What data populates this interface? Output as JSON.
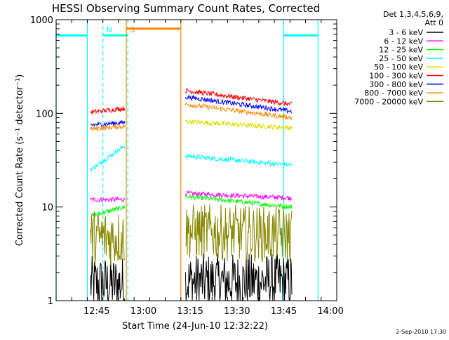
{
  "chart_data": {
    "type": "line",
    "title": "HESSI Observing Summary Count Rates, Corrected",
    "xlabel": "Start Time (24-Jun-10 12:32:22)",
    "ylabel": "Corrected Count Rate (s⁻¹ detector⁻¹)",
    "y_scale": "log",
    "ylim": [
      1,
      1000
    ],
    "y_ticks": [
      1,
      10,
      100,
      1000
    ],
    "y_tick_labels": [
      "1",
      "10",
      "100",
      "1000"
    ],
    "xlim_min_after_1232": [
      0,
      90
    ],
    "x_ticks_min_after_1232": [
      13,
      28,
      43,
      58,
      73,
      88
    ],
    "x_tick_labels": [
      "12:45",
      "13:00",
      "13:15",
      "13:30",
      "13:45",
      "14:00"
    ],
    "legend_header": [
      "Det 1,3,4,5,6,9,",
      "Att 0"
    ],
    "legend_placement": "right",
    "footer_date": "2-Sep-2010 17:30",
    "series": [
      {
        "name": "3 - 6 keV",
        "color": "#000000",
        "noisy": true,
        "segments": [
          {
            "x": [
              11,
              22
            ],
            "y": [
              1.5,
              1.5
            ]
          },
          {
            "x": [
              41.5,
              75.6
            ],
            "y": [
              1.6,
              1.6
            ]
          }
        ]
      },
      {
        "name": "6 - 12 keV",
        "color": "#ff00ff",
        "segments": [
          {
            "x": [
              11,
              22
            ],
            "y": [
              12,
              12
            ]
          },
          {
            "x": [
              41.5,
              75.6
            ],
            "y": [
              14,
              12.5
            ]
          }
        ]
      },
      {
        "name": "12 - 25 keV",
        "color": "#00ff00",
        "segments": [
          {
            "x": [
              11,
              22
            ],
            "y": [
              8,
              10
            ]
          },
          {
            "x": [
              41.5,
              75.6
            ],
            "y": [
              13,
              10
            ]
          }
        ]
      },
      {
        "name": "25 - 50 keV",
        "color": "#00ffff",
        "segments": [
          {
            "x": [
              11,
              22
            ],
            "y": [
              25,
              45
            ]
          },
          {
            "x": [
              41.5,
              75.6
            ],
            "y": [
              35,
              28
            ]
          }
        ]
      },
      {
        "name": "50 - 100 keV",
        "color": "#dddd00",
        "segments": [
          {
            "x": [
              41.5,
              75.6
            ],
            "y": [
              82,
              70
            ]
          }
        ]
      },
      {
        "name": "100 - 300 keV",
        "color": "#ff0000",
        "segments": [
          {
            "x": [
              11,
              22
            ],
            "y": [
              103,
              113
            ]
          },
          {
            "x": [
              41.5,
              75.6
            ],
            "y": [
              175,
              125
            ]
          }
        ]
      },
      {
        "name": "300 - 800 keV",
        "color": "#0000ff",
        "segments": [
          {
            "x": [
              11,
              22
            ],
            "y": [
              75,
              80
            ]
          },
          {
            "x": [
              41.5,
              75.6
            ],
            "y": [
              150,
              105
            ]
          }
        ]
      },
      {
        "name": "800 - 7000 keV",
        "color": "#ff8800",
        "segments": [
          {
            "x": [
              11,
              22
            ],
            "y": [
              68,
              73
            ]
          },
          {
            "x": [
              41.5,
              75.6
            ],
            "y": [
              125,
              90
            ]
          }
        ]
      },
      {
        "name": "7000 - 20000 keV",
        "color": "#888800",
        "noisy": true,
        "segments": [
          {
            "x": [
              11,
              22
            ],
            "y": [
              4.7,
              4.7
            ]
          },
          {
            "x": [
              41.5,
              75.6
            ],
            "y": [
              5.5,
              5.0
            ]
          }
        ]
      }
    ],
    "flags": [
      {
        "label": "",
        "color": "#00ffff",
        "style": "solid",
        "level": 680,
        "x": [
          0,
          10
        ]
      },
      {
        "label": "N",
        "color": "#00ffff",
        "style": "dashed",
        "level": 680,
        "x": [
          15,
          23
        ]
      },
      {
        "label": "S",
        "color": "#ff8800",
        "style": "solid",
        "level": 800,
        "x": [
          22.5,
          40
        ]
      },
      {
        "label": "",
        "color": "#00ffff",
        "style": "solid",
        "level": 680,
        "x": [
          73,
          84
        ]
      }
    ]
  }
}
